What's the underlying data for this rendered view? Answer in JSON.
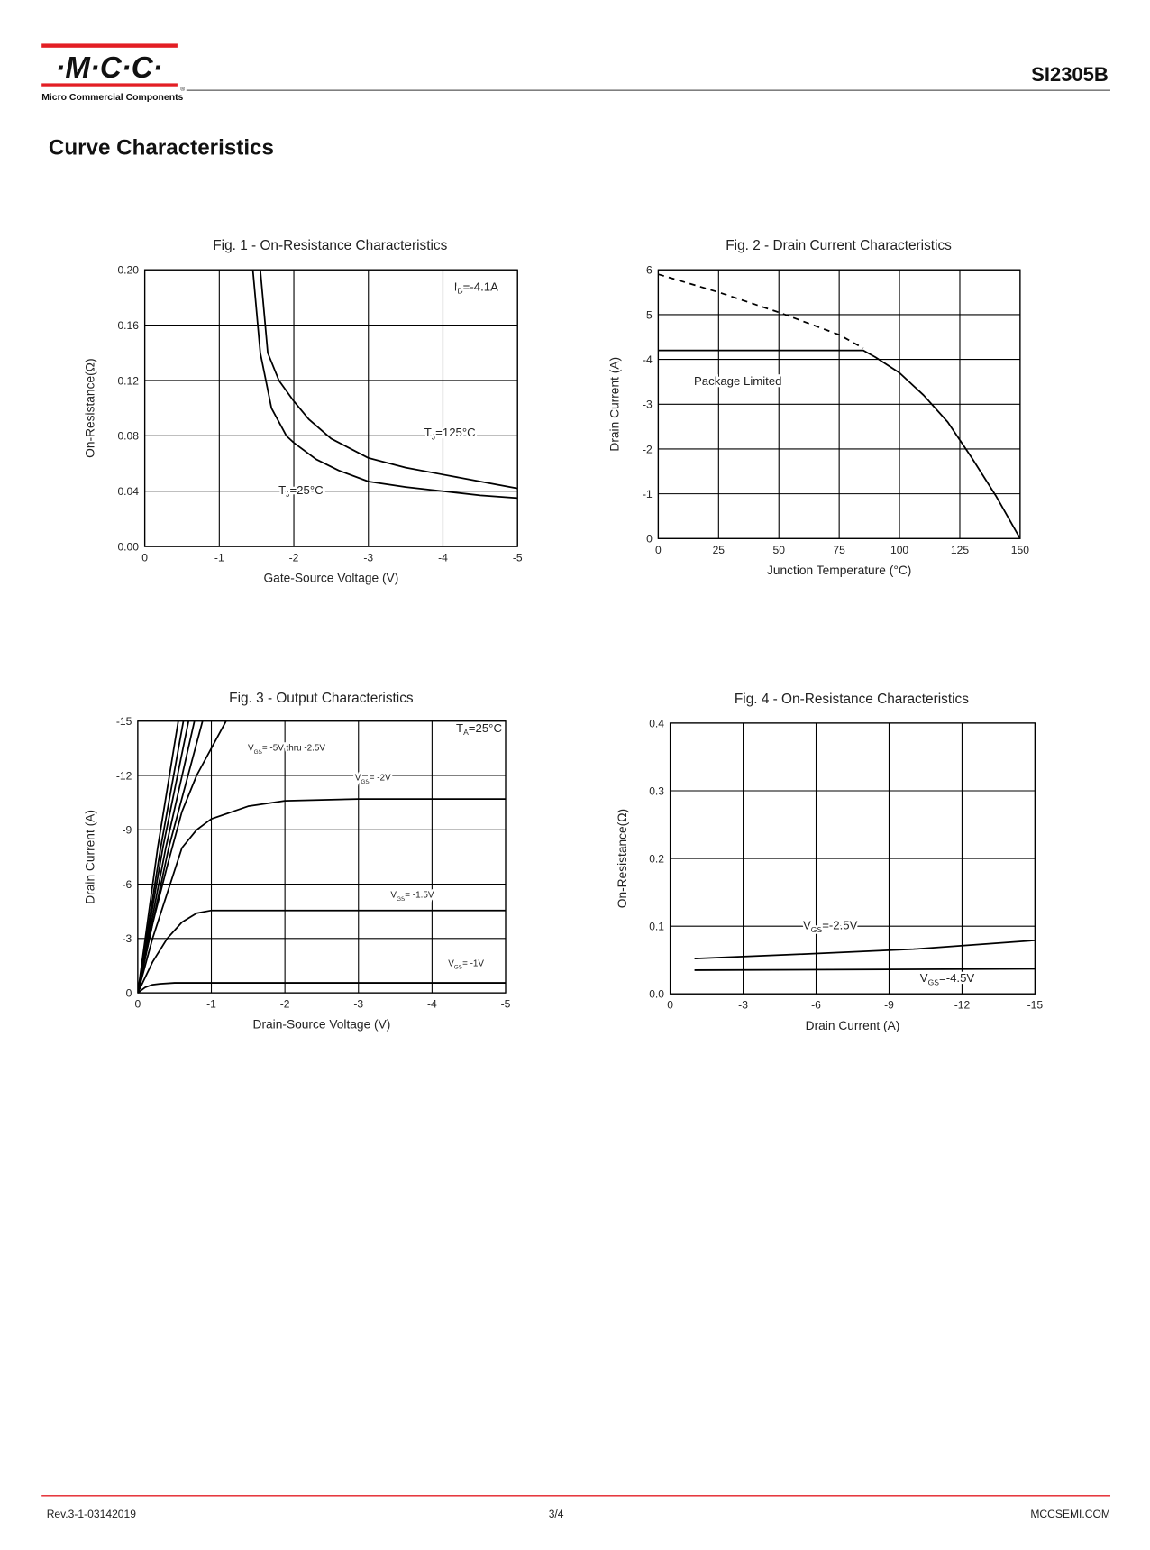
{
  "header": {
    "logo": "·M·C·C·",
    "registered": "®",
    "company": "Micro Commercial Components",
    "part_number": "SI2305B"
  },
  "title": "Curve Characteristics",
  "chart_data": [
    {
      "type": "line",
      "title": "Fig. 1 - On-Resistance Characteristics",
      "x_label": "Gate-Source Voltage (V)",
      "y_label": "On-Resistance(Ω)",
      "xlim": [
        0,
        -5
      ],
      "xticks": [
        0,
        -1,
        -2,
        -3,
        -4,
        -5
      ],
      "ylim": [
        0,
        0.2
      ],
      "yticks": [
        {
          "value": 0,
          "label": "0.00"
        },
        0.04,
        0.08,
        0.12,
        0.16,
        {
          "value": 0.2,
          "label": "0.20"
        }
      ],
      "grid": true,
      "series": [
        {
          "color": "#000000",
          "x": [
            -1.55,
            -1.65,
            -1.8,
            -2,
            -2.2,
            -2.5,
            -3,
            -3.5,
            -4,
            -4.5,
            -5
          ],
          "values": [
            0.2,
            0.14,
            0.12,
            0.105,
            0.092,
            0.078,
            0.064,
            0.057,
            0.052,
            0.047,
            0.042
          ]
        },
        {
          "color": "#000000",
          "x": [
            -1.45,
            -1.55,
            -1.7,
            -1.9,
            -2,
            -2.3,
            -2.6,
            -3,
            -3.5,
            -4,
            -4.5,
            -5
          ],
          "values": [
            0.2,
            0.14,
            0.1,
            0.08,
            0.075,
            0.063,
            0.055,
            0.047,
            0.043,
            0.04,
            0.037,
            0.035
          ]
        }
      ],
      "annotations": [
        {
          "text": "I",
          "sub": "D",
          "rest": "=-4.1A"
        },
        {
          "text": "T",
          "sub": "J",
          "rest": "=125°C"
        },
        {
          "text": "T",
          "sub": "J",
          "rest": "=25°C"
        }
      ]
    },
    {
      "type": "line",
      "title": "Fig. 2 - Drain Current Characteristics",
      "x_label": "Junction Temperature (°C)",
      "y_label": "Drain Current (A)",
      "xlim": [
        0,
        150
      ],
      "xticks": [
        0,
        25,
        50,
        75,
        100,
        125,
        150
      ],
      "ylim": [
        0,
        -6
      ],
      "yticks": [
        0,
        -1,
        -2,
        -3,
        -4,
        -5,
        -6
      ],
      "grid": true,
      "series": [
        {
          "color": "#000000",
          "dashed": true,
          "x": [
            0,
            25,
            50,
            75,
            85
          ],
          "values": [
            -5.9,
            -5.5,
            -5.05,
            -4.55,
            -4.25
          ]
        },
        {
          "color": "#000000",
          "x": [
            0,
            85,
            90,
            100,
            110,
            120,
            125,
            130,
            140,
            150
          ],
          "values": [
            -4.2,
            -4.2,
            -4.05,
            -3.7,
            -3.2,
            -2.6,
            -2.2,
            -1.8,
            -0.95,
            0
          ]
        }
      ],
      "annotations": [
        {
          "text": "Package Limited"
        }
      ]
    },
    {
      "type": "line",
      "title": "Fig. 3 - Output Characteristics",
      "x_label": "Drain-Source Voltage (V)",
      "y_label": "Drain Current (A)",
      "xlim": [
        0,
        -5
      ],
      "xticks": [
        0,
        -1,
        -2,
        -3,
        -4,
        -5
      ],
      "ylim": [
        0,
        -15
      ],
      "yticks": [
        0,
        -3,
        -6,
        -9,
        -12,
        -15
      ],
      "grid": true,
      "series": [
        {
          "color": "#000000",
          "x": [
            0,
            -0.27,
            -0.55
          ],
          "values": [
            0,
            -8,
            -15
          ]
        },
        {
          "color": "#000000",
          "x": [
            0,
            -0.31,
            -0.62
          ],
          "values": [
            0,
            -8,
            -15
          ]
        },
        {
          "color": "#000000",
          "x": [
            0,
            -0.34,
            -0.69
          ],
          "values": [
            0,
            -8,
            -15
          ]
        },
        {
          "color": "#000000",
          "x": [
            0,
            -0.38,
            -0.77
          ],
          "values": [
            0,
            -8,
            -15
          ]
        },
        {
          "color": "#000000",
          "x": [
            0,
            -0.42,
            -0.88
          ],
          "values": [
            0,
            -8,
            -15
          ]
        },
        {
          "color": "#000000",
          "x": [
            0,
            -0.2,
            -0.4,
            -0.6,
            -0.8,
            -1.2
          ],
          "values": [
            0,
            -3.8,
            -7,
            -10,
            -12,
            -15
          ]
        },
        {
          "color": "#000000",
          "x": [
            0,
            -0.2,
            -0.4,
            -0.6,
            -0.8,
            -1,
            -1.5,
            -2,
            -3,
            -5
          ],
          "values": [
            0,
            -3,
            -5.5,
            -8,
            -9,
            -9.6,
            -10.3,
            -10.6,
            -10.7,
            -10.7
          ]
        },
        {
          "color": "#000000",
          "x": [
            0,
            -0.2,
            -0.4,
            -0.6,
            -0.8,
            -1,
            -5
          ],
          "values": [
            0,
            -1.7,
            -3,
            -3.9,
            -4.4,
            -4.55,
            -4.55
          ]
        },
        {
          "color": "#000000",
          "x": [
            0,
            -0.1,
            -0.2,
            -0.3,
            -0.5,
            -1,
            -5
          ],
          "values": [
            0,
            -0.3,
            -0.45,
            -0.5,
            -0.55,
            -0.55,
            -0.55
          ]
        }
      ],
      "annotations": [
        {
          "text": "T",
          "sub": "A",
          "rest": "=25°C"
        },
        {
          "text": "V",
          "sub": "GS",
          "rest": "= -5V thru -2.5V"
        },
        {
          "text": "V",
          "sub": "GS",
          "rest": "= -2V"
        },
        {
          "text": "V",
          "sub": "GS",
          "rest": "= -1.5V"
        },
        {
          "text": "V",
          "sub": "GS",
          "rest": "= -1V"
        }
      ]
    },
    {
      "type": "line",
      "title": "Fig. 4 - On-Resistance Characteristics",
      "x_label": "Drain Current (A)",
      "y_label": "On-Resistance(Ω)",
      "xlim": [
        0,
        -15
      ],
      "xticks": [
        0,
        -3,
        -6,
        -9,
        -12,
        -15
      ],
      "ylim": [
        0,
        0.4
      ],
      "yticks": [
        {
          "value": 0,
          "label": "0.0"
        },
        0.1,
        0.2,
        0.3,
        0.4
      ],
      "grid": true,
      "series": [
        {
          "color": "#000000",
          "x": [
            -1,
            -5,
            -10,
            -15
          ],
          "values": [
            0.052,
            0.058,
            0.066,
            0.079
          ]
        },
        {
          "color": "#000000",
          "x": [
            -1,
            -15
          ],
          "values": [
            0.035,
            0.037
          ]
        }
      ],
      "annotations": [
        {
          "text": "V",
          "sub": "GS",
          "rest": "=-2.5V"
        },
        {
          "text": "V",
          "sub": "GS",
          "rest": "=-4.5V"
        }
      ]
    }
  ],
  "footer": {
    "revision": "Rev.3-1-03142019",
    "page": "3/4",
    "website": "MCCSEMI.COM"
  }
}
